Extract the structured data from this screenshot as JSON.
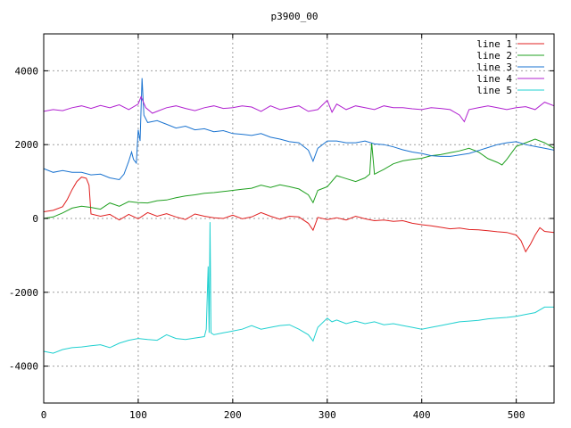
{
  "chart_data": {
    "type": "line",
    "title": "p3900_00",
    "xlim": [
      0,
      540
    ],
    "ylim": [
      -5000,
      5000
    ],
    "x_ticks": [
      0,
      100,
      200,
      300,
      400,
      500
    ],
    "y_ticks": [
      -4000,
      -2000,
      0,
      2000,
      4000
    ],
    "grid": true,
    "legend_position": "top-right",
    "series": [
      {
        "name": "line 1",
        "color": "#e02020",
        "points": [
          [
            0,
            180
          ],
          [
            10,
            220
          ],
          [
            20,
            320
          ],
          [
            25,
            520
          ],
          [
            30,
            780
          ],
          [
            35,
            1000
          ],
          [
            40,
            1120
          ],
          [
            45,
            1090
          ],
          [
            48,
            900
          ],
          [
            50,
            120
          ],
          [
            60,
            60
          ],
          [
            70,
            110
          ],
          [
            80,
            -40
          ],
          [
            90,
            110
          ],
          [
            100,
            -10
          ],
          [
            110,
            160
          ],
          [
            120,
            60
          ],
          [
            130,
            130
          ],
          [
            140,
            40
          ],
          [
            150,
            -30
          ],
          [
            160,
            120
          ],
          [
            170,
            60
          ],
          [
            180,
            20
          ],
          [
            190,
            0
          ],
          [
            200,
            90
          ],
          [
            210,
            -10
          ],
          [
            220,
            40
          ],
          [
            230,
            160
          ],
          [
            240,
            60
          ],
          [
            250,
            -20
          ],
          [
            260,
            60
          ],
          [
            270,
            40
          ],
          [
            280,
            -130
          ],
          [
            285,
            -320
          ],
          [
            290,
            30
          ],
          [
            300,
            -30
          ],
          [
            310,
            20
          ],
          [
            320,
            -40
          ],
          [
            330,
            60
          ],
          [
            340,
            -10
          ],
          [
            350,
            -60
          ],
          [
            360,
            -40
          ],
          [
            370,
            -80
          ],
          [
            380,
            -60
          ],
          [
            390,
            -130
          ],
          [
            400,
            -170
          ],
          [
            410,
            -200
          ],
          [
            420,
            -240
          ],
          [
            430,
            -280
          ],
          [
            440,
            -260
          ],
          [
            450,
            -300
          ],
          [
            460,
            -310
          ],
          [
            470,
            -330
          ],
          [
            480,
            -360
          ],
          [
            490,
            -380
          ],
          [
            500,
            -450
          ],
          [
            505,
            -600
          ],
          [
            510,
            -900
          ],
          [
            515,
            -700
          ],
          [
            520,
            -450
          ],
          [
            525,
            -250
          ],
          [
            530,
            -350
          ],
          [
            540,
            -380
          ]
        ]
      },
      {
        "name": "line 2",
        "color": "#20a020",
        "points": [
          [
            0,
            0
          ],
          [
            10,
            40
          ],
          [
            20,
            150
          ],
          [
            30,
            280
          ],
          [
            40,
            330
          ],
          [
            50,
            300
          ],
          [
            60,
            250
          ],
          [
            70,
            420
          ],
          [
            80,
            330
          ],
          [
            90,
            460
          ],
          [
            100,
            430
          ],
          [
            110,
            420
          ],
          [
            120,
            480
          ],
          [
            130,
            500
          ],
          [
            140,
            560
          ],
          [
            150,
            610
          ],
          [
            160,
            640
          ],
          [
            170,
            680
          ],
          [
            180,
            700
          ],
          [
            190,
            730
          ],
          [
            200,
            760
          ],
          [
            210,
            790
          ],
          [
            220,
            820
          ],
          [
            230,
            900
          ],
          [
            240,
            840
          ],
          [
            250,
            910
          ],
          [
            260,
            860
          ],
          [
            270,
            800
          ],
          [
            280,
            640
          ],
          [
            285,
            430
          ],
          [
            290,
            760
          ],
          [
            300,
            860
          ],
          [
            310,
            1160
          ],
          [
            320,
            1080
          ],
          [
            330,
            1000
          ],
          [
            340,
            1100
          ],
          [
            345,
            1200
          ],
          [
            347,
            2050
          ],
          [
            350,
            1200
          ],
          [
            360,
            1330
          ],
          [
            370,
            1480
          ],
          [
            380,
            1560
          ],
          [
            390,
            1600
          ],
          [
            400,
            1630
          ],
          [
            410,
            1700
          ],
          [
            420,
            1730
          ],
          [
            430,
            1780
          ],
          [
            440,
            1830
          ],
          [
            450,
            1900
          ],
          [
            460,
            1800
          ],
          [
            470,
            1620
          ],
          [
            480,
            1520
          ],
          [
            485,
            1450
          ],
          [
            490,
            1600
          ],
          [
            500,
            1950
          ],
          [
            510,
            2050
          ],
          [
            520,
            2150
          ],
          [
            530,
            2050
          ],
          [
            540,
            1900
          ]
        ]
      },
      {
        "name": "line 3",
        "color": "#1a73d0",
        "points": [
          [
            0,
            1350
          ],
          [
            10,
            1250
          ],
          [
            20,
            1300
          ],
          [
            30,
            1250
          ],
          [
            40,
            1250
          ],
          [
            50,
            1180
          ],
          [
            60,
            1200
          ],
          [
            70,
            1100
          ],
          [
            80,
            1050
          ],
          [
            85,
            1200
          ],
          [
            90,
            1550
          ],
          [
            93,
            1800
          ],
          [
            95,
            1600
          ],
          [
            98,
            1500
          ],
          [
            100,
            2400
          ],
          [
            102,
            2100
          ],
          [
            104,
            3800
          ],
          [
            106,
            2800
          ],
          [
            110,
            2600
          ],
          [
            120,
            2650
          ],
          [
            130,
            2550
          ],
          [
            140,
            2450
          ],
          [
            150,
            2500
          ],
          [
            160,
            2400
          ],
          [
            170,
            2430
          ],
          [
            180,
            2350
          ],
          [
            190,
            2380
          ],
          [
            200,
            2300
          ],
          [
            210,
            2280
          ],
          [
            220,
            2250
          ],
          [
            230,
            2300
          ],
          [
            240,
            2200
          ],
          [
            250,
            2150
          ],
          [
            260,
            2080
          ],
          [
            270,
            2050
          ],
          [
            280,
            1850
          ],
          [
            285,
            1550
          ],
          [
            290,
            1900
          ],
          [
            300,
            2100
          ],
          [
            310,
            2100
          ],
          [
            320,
            2050
          ],
          [
            330,
            2050
          ],
          [
            340,
            2100
          ],
          [
            350,
            2020
          ],
          [
            360,
            2000
          ],
          [
            370,
            1940
          ],
          [
            380,
            1860
          ],
          [
            390,
            1800
          ],
          [
            400,
            1760
          ],
          [
            410,
            1700
          ],
          [
            420,
            1680
          ],
          [
            430,
            1680
          ],
          [
            440,
            1720
          ],
          [
            450,
            1760
          ],
          [
            460,
            1840
          ],
          [
            470,
            1920
          ],
          [
            480,
            2000
          ],
          [
            490,
            2050
          ],
          [
            500,
            2080
          ],
          [
            510,
            2000
          ],
          [
            520,
            1950
          ],
          [
            530,
            1900
          ],
          [
            540,
            1850
          ]
        ]
      },
      {
        "name": "line 4",
        "color": "#b020d0",
        "points": [
          [
            0,
            2900
          ],
          [
            10,
            2950
          ],
          [
            20,
            2920
          ],
          [
            30,
            3000
          ],
          [
            40,
            3050
          ],
          [
            50,
            2980
          ],
          [
            60,
            3060
          ],
          [
            70,
            3000
          ],
          [
            80,
            3080
          ],
          [
            90,
            2950
          ],
          [
            100,
            3100
          ],
          [
            103,
            3300
          ],
          [
            108,
            3000
          ],
          [
            115,
            2850
          ],
          [
            120,
            2900
          ],
          [
            130,
            3000
          ],
          [
            140,
            3050
          ],
          [
            150,
            2980
          ],
          [
            160,
            2920
          ],
          [
            170,
            3000
          ],
          [
            180,
            3050
          ],
          [
            190,
            2980
          ],
          [
            200,
            3000
          ],
          [
            210,
            3050
          ],
          [
            220,
            3020
          ],
          [
            230,
            2900
          ],
          [
            240,
            3050
          ],
          [
            250,
            2950
          ],
          [
            260,
            3000
          ],
          [
            270,
            3050
          ],
          [
            280,
            2900
          ],
          [
            290,
            2950
          ],
          [
            300,
            3200
          ],
          [
            305,
            2880
          ],
          [
            310,
            3100
          ],
          [
            320,
            2950
          ],
          [
            330,
            3050
          ],
          [
            340,
            3000
          ],
          [
            350,
            2950
          ],
          [
            360,
            3050
          ],
          [
            370,
            3000
          ],
          [
            380,
            3000
          ],
          [
            390,
            2970
          ],
          [
            400,
            2950
          ],
          [
            410,
            3000
          ],
          [
            420,
            2980
          ],
          [
            430,
            2950
          ],
          [
            440,
            2800
          ],
          [
            445,
            2620
          ],
          [
            450,
            2950
          ],
          [
            460,
            3000
          ],
          [
            470,
            3050
          ],
          [
            480,
            3000
          ],
          [
            490,
            2950
          ],
          [
            500,
            3000
          ],
          [
            510,
            3030
          ],
          [
            520,
            2950
          ],
          [
            530,
            3150
          ],
          [
            540,
            3050
          ]
        ]
      },
      {
        "name": "line 5",
        "color": "#20d0d0",
        "points": [
          [
            0,
            -3600
          ],
          [
            10,
            -3650
          ],
          [
            20,
            -3550
          ],
          [
            30,
            -3500
          ],
          [
            40,
            -3480
          ],
          [
            50,
            -3450
          ],
          [
            60,
            -3420
          ],
          [
            70,
            -3500
          ],
          [
            80,
            -3380
          ],
          [
            90,
            -3300
          ],
          [
            100,
            -3250
          ],
          [
            110,
            -3280
          ],
          [
            120,
            -3300
          ],
          [
            130,
            -3150
          ],
          [
            140,
            -3250
          ],
          [
            150,
            -3280
          ],
          [
            160,
            -3240
          ],
          [
            170,
            -3200
          ],
          [
            172,
            -3000
          ],
          [
            174,
            -1300
          ],
          [
            175,
            -3100
          ],
          [
            176,
            -100
          ],
          [
            177,
            -3100
          ],
          [
            180,
            -3150
          ],
          [
            190,
            -3100
          ],
          [
            200,
            -3050
          ],
          [
            210,
            -3000
          ],
          [
            220,
            -2900
          ],
          [
            230,
            -3000
          ],
          [
            240,
            -2950
          ],
          [
            250,
            -2900
          ],
          [
            260,
            -2880
          ],
          [
            270,
            -3000
          ],
          [
            280,
            -3150
          ],
          [
            285,
            -3320
          ],
          [
            290,
            -2950
          ],
          [
            300,
            -2700
          ],
          [
            305,
            -2800
          ],
          [
            310,
            -2750
          ],
          [
            320,
            -2850
          ],
          [
            330,
            -2780
          ],
          [
            340,
            -2850
          ],
          [
            350,
            -2800
          ],
          [
            360,
            -2880
          ],
          [
            370,
            -2850
          ],
          [
            380,
            -2900
          ],
          [
            390,
            -2950
          ],
          [
            400,
            -3000
          ],
          [
            410,
            -2950
          ],
          [
            420,
            -2900
          ],
          [
            430,
            -2850
          ],
          [
            440,
            -2800
          ],
          [
            450,
            -2780
          ],
          [
            460,
            -2760
          ],
          [
            470,
            -2720
          ],
          [
            480,
            -2700
          ],
          [
            490,
            -2680
          ],
          [
            500,
            -2650
          ],
          [
            510,
            -2600
          ],
          [
            520,
            -2550
          ],
          [
            530,
            -2400
          ],
          [
            540,
            -2400
          ]
        ]
      }
    ]
  }
}
